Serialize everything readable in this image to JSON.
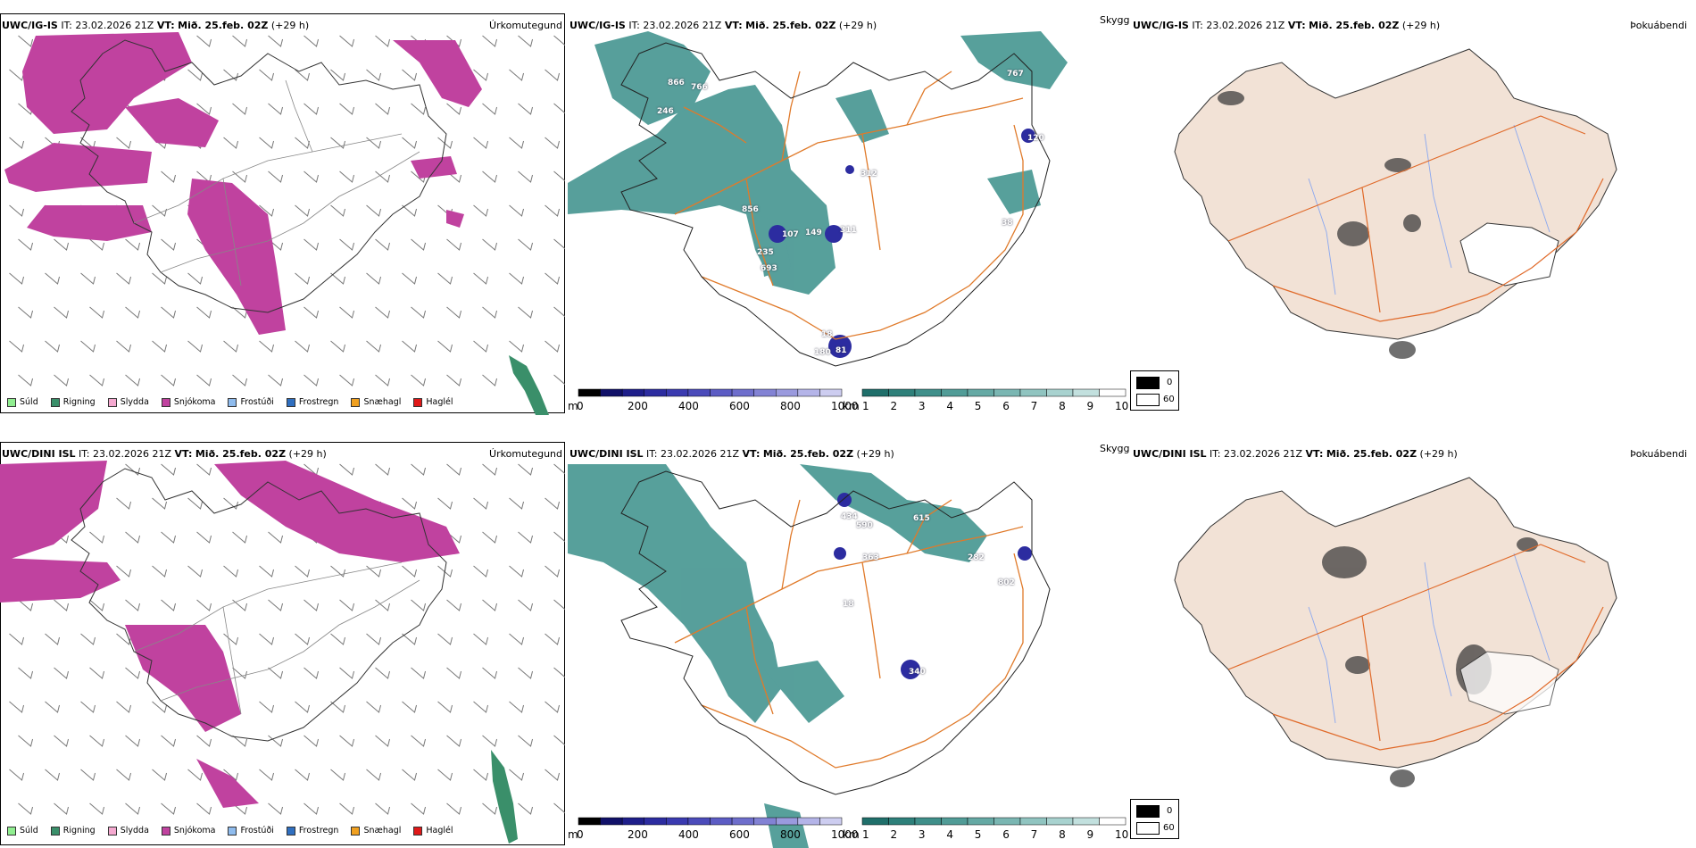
{
  "top": {
    "model": "UWC/IG-IS",
    "it_label": "IT:",
    "it_value": "23.02.2026 21Z",
    "vt_label": "VT:",
    "vt_value": "Mið. 25.feb. 02Z",
    "lead": "(+29 h)"
  },
  "bottom": {
    "model": "UWC/DINI ISL",
    "it_label": "IT:",
    "it_value": "23.02.2026 21Z",
    "vt_label": "VT:",
    "vt_value": "Mið. 25.feb. 02Z",
    "lead": "(+29 h)"
  },
  "titles": {
    "precip": "Úrkomutegund",
    "visibility": "Skyggni",
    "fog": "Þokuábendi"
  },
  "precip_legend": [
    {
      "label": "Súld",
      "color": "#90ee90"
    },
    {
      "label": "Rigning",
      "color": "#3a8f6a"
    },
    {
      "label": "Slydda",
      "color": "#f5a9d0"
    },
    {
      "label": "Snjókoma",
      "color": "#c0429f"
    },
    {
      "label": "Frostúði",
      "color": "#8fbcee"
    },
    {
      "label": "Frostregn",
      "color": "#2f6fc0"
    },
    {
      "label": "Snæhagl",
      "color": "#f0a020"
    },
    {
      "label": "Haglél",
      "color": "#e01818"
    }
  ],
  "cloud_colorbar": {
    "unit": "m",
    "ticks": [
      "0",
      "200",
      "400",
      "600",
      "800",
      "1000"
    ],
    "colors": [
      "#000000",
      "#101068",
      "#1e1e8a",
      "#2c2ca0",
      "#3a3ab0",
      "#4b4bba",
      "#5c5cc4",
      "#6e6ecc",
      "#8282d4",
      "#9a9ade",
      "#b4b4e8",
      "#cdcdf0"
    ]
  },
  "vis_colorbar": {
    "unit": "km",
    "ticks": [
      "1",
      "2",
      "3",
      "4",
      "5",
      "6",
      "7",
      "8",
      "9",
      "10"
    ],
    "colors": [
      "#1f6f6a",
      "#2e807a",
      "#3f8f8a",
      "#519c97",
      "#65a9a4",
      "#7ab6b2",
      "#90c4c0",
      "#a8d2cf",
      "#c2e0de",
      "#ffffff"
    ]
  },
  "fog_legend": {
    "low": "0",
    "high": "60"
  },
  "top_labels": [
    "866",
    "766",
    "246",
    "856",
    "107",
    "149",
    "235",
    "693",
    "312",
    "311",
    "38",
    "120",
    "767",
    "18",
    "180",
    "81"
  ],
  "bottom_labels": [
    "434",
    "590",
    "615",
    "363",
    "282",
    "802",
    "18",
    "340"
  ],
  "colors": {
    "snow": "#c0429f",
    "rain": "#3a8f6a",
    "vis": "#3a8f8a",
    "cloud": "#2c2ca0",
    "land": "#f2e2d6",
    "road": "#e06a2a",
    "river": "#8aa8f0",
    "coast": "#000000"
  }
}
